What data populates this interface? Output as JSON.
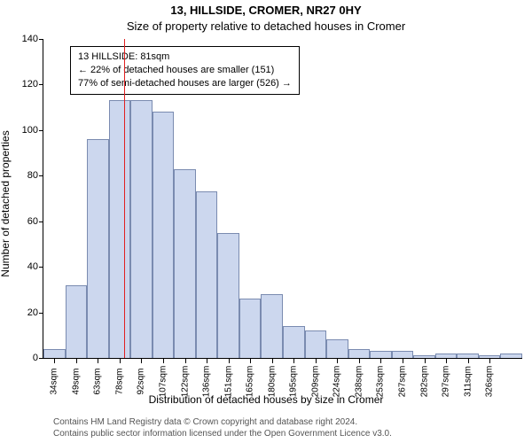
{
  "title_main": "13, HILLSIDE, CROMER, NR27 0HY",
  "title_sub": "Size of property relative to detached houses in Cromer",
  "ylabel": "Number of detached properties",
  "xlabel": "Distribution of detached houses by size in Cromer",
  "attribution_line1": "Contains HM Land Registry data © Crown copyright and database right 2024.",
  "attribution_line2": "Contains public sector information licensed under the Open Government Licence v3.0.",
  "annot": {
    "line1": "13 HILLSIDE: 81sqm",
    "line2": "← 22% of detached houses are smaller (151)",
    "line3": "77% of semi-detached houses are larger (526) →"
  },
  "chart": {
    "type": "histogram",
    "ylim": [
      0,
      140
    ],
    "ytick_step": 20,
    "yticks": [
      0,
      20,
      40,
      60,
      80,
      100,
      120,
      140
    ],
    "x_start": 27,
    "bin_width": 14.5,
    "xticks_labels": [
      "34sqm",
      "49sqm",
      "63sqm",
      "78sqm",
      "92sqm",
      "107sqm",
      "122sqm",
      "136sqm",
      "151sqm",
      "165sqm",
      "180sqm",
      "195sqm",
      "209sqm",
      "224sqm",
      "238sqm",
      "253sqm",
      "267sqm",
      "282sqm",
      "297sqm",
      "311sqm",
      "326sqm"
    ],
    "n_bars": 22,
    "values": [
      4,
      32,
      96,
      113,
      113,
      108,
      83,
      73,
      55,
      26,
      28,
      14,
      12,
      8,
      4,
      3,
      3,
      1,
      2,
      2,
      1,
      2
    ],
    "bar_fill": "#ccd7ee",
    "bar_stroke": "#7a8bb0",
    "marker_x": 81,
    "marker_color": "#e02020",
    "background_color": "#ffffff",
    "axis_color": "#000000",
    "title_fontsize": 13,
    "label_fontsize": 12,
    "tick_fontsize": 11
  }
}
